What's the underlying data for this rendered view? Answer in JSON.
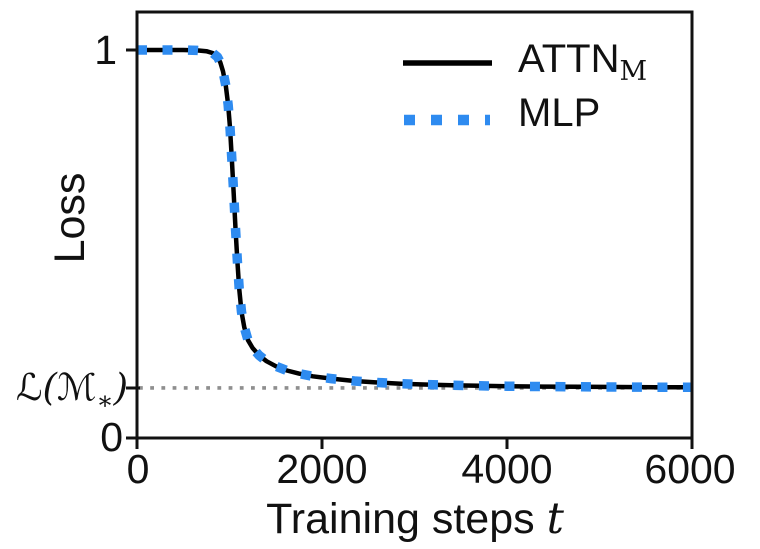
{
  "figure": {
    "background": "#ffffff",
    "text_color": "#111111",
    "accent_blue": "#2e8bf0",
    "reference_gray": "#8f8f8f"
  },
  "chart_data": {
    "type": "line",
    "title": "",
    "xlabel": "Training steps t",
    "ylabel": "Loss",
    "xlim": [
      0,
      6000
    ],
    "ylim": [
      0,
      1.1
    ],
    "grid": false,
    "legend_position": "upper right",
    "legend_frame": false,
    "x_ticks": [
      0,
      2000,
      4000,
      6000
    ],
    "x_tick_labels": [
      "0",
      "2000",
      "4000",
      "6000"
    ],
    "y_tick_values": [
      1,
      0.129,
      0
    ],
    "y_tick_labels": [
      "1",
      "ℒ(ℳ∗)",
      "0"
    ],
    "reference_line": {
      "label": "ℒ(ℳ∗)",
      "value": 0.129,
      "color": "#8f8f8f",
      "style": "dotted"
    },
    "series": [
      {
        "name": "ATTN_M",
        "color": "#000000",
        "style": "solid",
        "line_width": 4.5,
        "points": [
          [
            0,
            1.0
          ],
          [
            250,
            1.0
          ],
          [
            500,
            1.0
          ],
          [
            650,
            0.999
          ],
          [
            750,
            0.997
          ],
          [
            820,
            0.992
          ],
          [
            870,
            0.982
          ],
          [
            900,
            0.968
          ],
          [
            930,
            0.945
          ],
          [
            960,
            0.908
          ],
          [
            985,
            0.86
          ],
          [
            1005,
            0.8
          ],
          [
            1025,
            0.72
          ],
          [
            1045,
            0.63
          ],
          [
            1065,
            0.54
          ],
          [
            1085,
            0.455
          ],
          [
            1105,
            0.385
          ],
          [
            1130,
            0.325
          ],
          [
            1160,
            0.285
          ],
          [
            1200,
            0.252
          ],
          [
            1250,
            0.232
          ],
          [
            1320,
            0.213
          ],
          [
            1400,
            0.198
          ],
          [
            1500,
            0.185
          ],
          [
            1620,
            0.174
          ],
          [
            1750,
            0.166
          ],
          [
            1900,
            0.159
          ],
          [
            2100,
            0.153
          ],
          [
            2350,
            0.147
          ],
          [
            2600,
            0.143
          ],
          [
            2850,
            0.14
          ],
          [
            3100,
            0.138
          ],
          [
            3400,
            0.136
          ],
          [
            3700,
            0.1345
          ],
          [
            4000,
            0.1335
          ],
          [
            4400,
            0.1325
          ],
          [
            4800,
            0.132
          ],
          [
            5200,
            0.1315
          ],
          [
            5600,
            0.131
          ],
          [
            6000,
            0.131
          ]
        ]
      },
      {
        "name": "MLP",
        "color": "#2e8bf0",
        "style": "dotted",
        "line_width": 9.5,
        "points": [
          [
            0,
            1.0
          ],
          [
            250,
            1.0
          ],
          [
            500,
            1.0
          ],
          [
            650,
            0.999
          ],
          [
            750,
            0.997
          ],
          [
            820,
            0.992
          ],
          [
            870,
            0.982
          ],
          [
            900,
            0.968
          ],
          [
            930,
            0.945
          ],
          [
            960,
            0.908
          ],
          [
            985,
            0.86
          ],
          [
            1005,
            0.8
          ],
          [
            1025,
            0.72
          ],
          [
            1045,
            0.63
          ],
          [
            1065,
            0.54
          ],
          [
            1085,
            0.455
          ],
          [
            1105,
            0.385
          ],
          [
            1130,
            0.325
          ],
          [
            1160,
            0.285
          ],
          [
            1200,
            0.252
          ],
          [
            1250,
            0.232
          ],
          [
            1320,
            0.213
          ],
          [
            1400,
            0.198
          ],
          [
            1500,
            0.185
          ],
          [
            1620,
            0.174
          ],
          [
            1750,
            0.166
          ],
          [
            1900,
            0.159
          ],
          [
            2100,
            0.153
          ],
          [
            2350,
            0.147
          ],
          [
            2600,
            0.143
          ],
          [
            2850,
            0.14
          ],
          [
            3100,
            0.138
          ],
          [
            3400,
            0.136
          ],
          [
            3700,
            0.1345
          ],
          [
            4000,
            0.1335
          ],
          [
            4400,
            0.1325
          ],
          [
            4800,
            0.132
          ],
          [
            5200,
            0.1315
          ],
          [
            5600,
            0.131
          ],
          [
            6000,
            0.131
          ]
        ]
      }
    ]
  },
  "axis_labels": {
    "ylabel": "Loss",
    "xlabel_main": "Training steps ",
    "xlabel_var": "t",
    "ytick_top": "1",
    "ytick_bottom": "0",
    "ref_pre": "ℒ(ℳ",
    "ref_sub": "∗",
    "ref_post": ")",
    "xtick_0": "0",
    "xtick_1": "2000",
    "xtick_2": "4000",
    "xtick_3": "6000"
  },
  "legend": {
    "entries": [
      {
        "label": "ATTN",
        "sub": "M",
        "series": "ATTN_M"
      },
      {
        "label": "MLP",
        "sub": "",
        "series": "MLP"
      }
    ]
  }
}
